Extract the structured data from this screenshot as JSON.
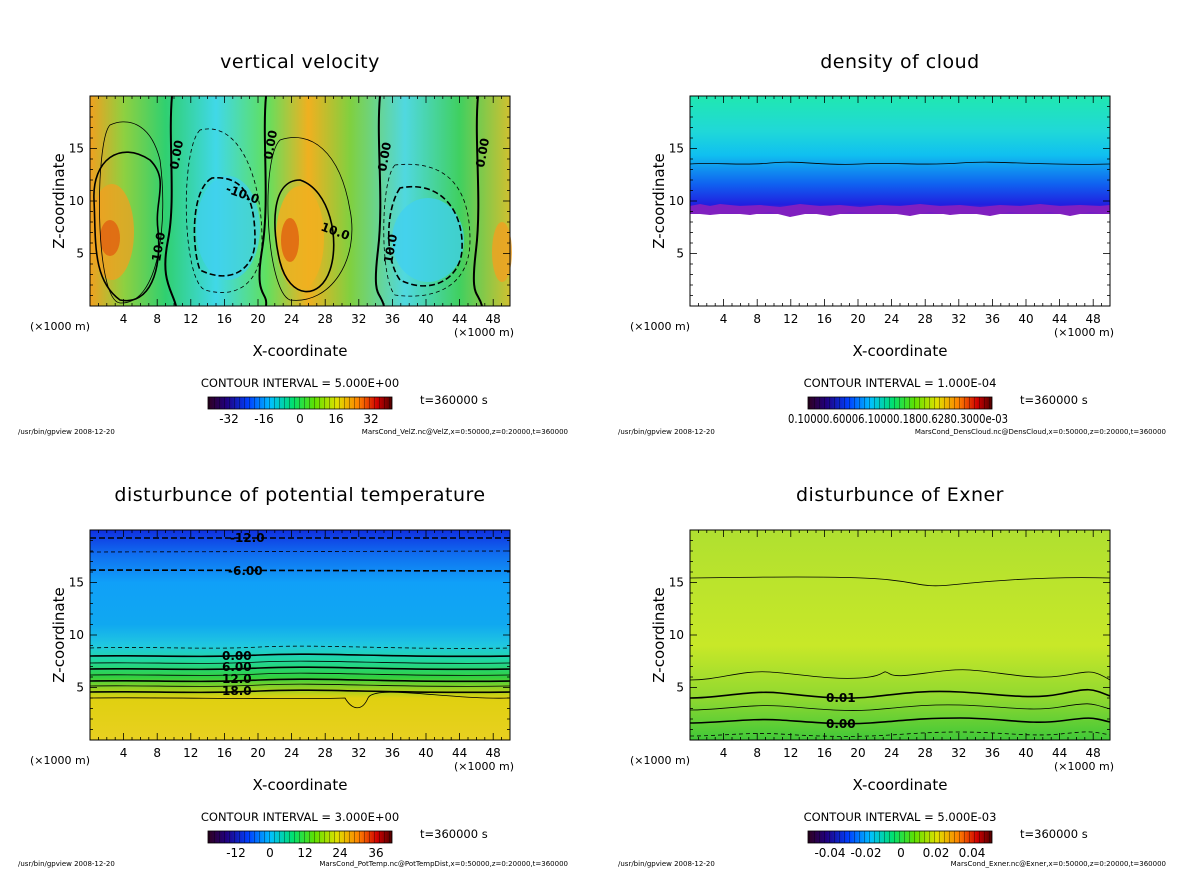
{
  "panels": [
    {
      "id": "vertical-velocity",
      "title": "vertical velocity",
      "xlabel": "X-coordinate",
      "ylabel": "Z-coordinate",
      "x_unit_left": "(×1000 m)",
      "x_unit_right": "(×1000 m)",
      "contour_interval": "CONTOUR INTERVAL = 5.000E+00",
      "time_label": "t=360000 s",
      "colorbar_ticks": [
        "-32",
        "-16",
        "0",
        "16",
        "32"
      ],
      "footer_left": "/usr/bin/gpview  2008-12-20",
      "footer_right": "MarsCond_VelZ.nc@VelZ,x=0:50000,z=0:20000,t=360000",
      "contour_labels": [
        "0.00",
        "0.00",
        "0.00",
        "0.00",
        "-10.0",
        "10.0",
        "10.0",
        "10.0"
      ]
    },
    {
      "id": "density-of-cloud",
      "title": "density of cloud",
      "xlabel": "X-coordinate",
      "ylabel": "Z-coordinate",
      "x_unit_left": "(×1000 m)",
      "x_unit_right": "(×1000 m)",
      "contour_interval": "CONTOUR INTERVAL = 1.000E-04",
      "time_label": "t=360000 s",
      "colorbar_ticks": [
        "0.10000.60006.10000.1800.6280.3000e-03"
      ],
      "footer_left": "/usr/bin/gpview  2008-12-20",
      "footer_right": "MarsCond_DensCloud.nc@DensCloud,x=0:50000,z=0:20000,t=360000",
      "contour_labels": []
    },
    {
      "id": "potential-temperature",
      "title": "disturbunce of potential temperature",
      "xlabel": "X-coordinate",
      "ylabel": "Z-coordinate",
      "x_unit_left": "(×1000 m)",
      "x_unit_right": "(×1000 m)",
      "contour_interval": "CONTOUR INTERVAL = 3.000E+00",
      "time_label": "t=360000 s",
      "colorbar_ticks": [
        "-12",
        "0",
        "12",
        "24",
        "36"
      ],
      "footer_left": "/usr/bin/gpview  2008-12-20",
      "footer_right": "MarsCond_PotTemp.nc@PotTempDist,x=0:50000,z=0:20000,t=360000",
      "contour_labels": [
        "-12.0",
        "-6.00",
        "0.00",
        "6.00",
        "12.0",
        "18.0"
      ]
    },
    {
      "id": "exner",
      "title": "disturbunce of Exner",
      "xlabel": "X-coordinate",
      "ylabel": "Z-coordinate",
      "x_unit_left": "(×1000 m)",
      "x_unit_right": "(×1000 m)",
      "contour_interval": "CONTOUR INTERVAL = 5.000E-03",
      "time_label": "t=360000 s",
      "colorbar_ticks": [
        "-0.04",
        "-0.02",
        "0",
        "0.02",
        "0.04"
      ],
      "footer_left": "/usr/bin/gpview  2008-12-20",
      "footer_right": "MarsCond_Exner.nc@Exner,x=0:50000,z=0:20000,t=360000",
      "contour_labels": [
        "0.01",
        "0.00"
      ]
    }
  ],
  "chart_data": [
    {
      "type": "heatmap",
      "title": "vertical velocity",
      "xlabel": "X-coordinate",
      "ylabel": "Z-coordinate",
      "xlim": [
        0,
        50
      ],
      "ylim": [
        0,
        20
      ],
      "xticks": [
        4,
        8,
        12,
        16,
        20,
        24,
        28,
        32,
        36,
        40,
        44,
        48
      ],
      "yticks": [
        5,
        10,
        15
      ],
      "x_unit": "×1000 m",
      "contour_interval": 5.0,
      "colorbar_ticks": [
        -32,
        -16,
        0,
        16,
        32
      ],
      "time_s": 360000,
      "contour_levels_labeled": [
        0.0,
        -10.0,
        10.0
      ]
    },
    {
      "type": "heatmap",
      "title": "density of cloud",
      "xlabel": "X-coordinate",
      "ylabel": "Z-coordinate",
      "xlim": [
        0,
        50
      ],
      "ylim": [
        0,
        20
      ],
      "xticks": [
        4,
        8,
        12,
        16,
        20,
        24,
        28,
        32,
        36,
        40,
        44,
        48
      ],
      "yticks": [
        5,
        10,
        15
      ],
      "x_unit": "×1000 m",
      "contour_interval": 0.0001,
      "time_s": 360000,
      "cloud_base_z": 9,
      "cloud_top_z": 13.5
    },
    {
      "type": "heatmap",
      "title": "disturbunce of potential temperature",
      "xlabel": "X-coordinate",
      "ylabel": "Z-coordinate",
      "xlim": [
        0,
        50
      ],
      "ylim": [
        0,
        20
      ],
      "xticks": [
        4,
        8,
        12,
        16,
        20,
        24,
        28,
        32,
        36,
        40,
        44,
        48
      ],
      "yticks": [
        5,
        10,
        15
      ],
      "x_unit": "×1000 m",
      "contour_interval": 3.0,
      "colorbar_ticks": [
        -12,
        0,
        12,
        24,
        36
      ],
      "time_s": 360000,
      "contour_levels_labeled": [
        -12.0,
        -6.0,
        0.0,
        6.0,
        12.0,
        18.0
      ]
    },
    {
      "type": "heatmap",
      "title": "disturbunce of Exner",
      "xlabel": "X-coordinate",
      "ylabel": "Z-coordinate",
      "xlim": [
        0,
        50
      ],
      "ylim": [
        0,
        20
      ],
      "xticks": [
        4,
        8,
        12,
        16,
        20,
        24,
        28,
        32,
        36,
        40,
        44,
        48
      ],
      "yticks": [
        5,
        10,
        15
      ],
      "x_unit": "×1000 m",
      "contour_interval": 0.005,
      "colorbar_ticks": [
        -0.04,
        -0.02,
        0,
        0.02,
        0.04
      ],
      "time_s": 360000,
      "contour_levels_labeled": [
        0.01,
        0.0
      ]
    }
  ]
}
